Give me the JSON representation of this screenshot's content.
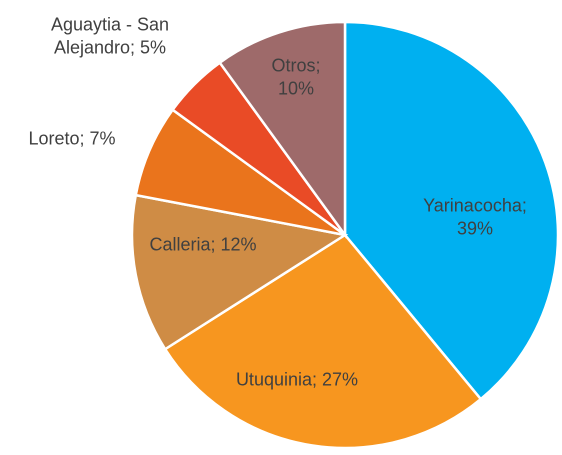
{
  "chart_data": {
    "type": "pie",
    "categories": [
      "Yarinacocha",
      "Utuquinia",
      "Calleria",
      "Loreto",
      "Aguaytia - San Alejandro",
      "Otros"
    ],
    "values": [
      39,
      27,
      12,
      7,
      5,
      10
    ],
    "value_labels": [
      "39%",
      "27%",
      "12%",
      "7%",
      "5%",
      "10%"
    ],
    "label_separator": ";",
    "colors": [
      "#00b0f0",
      "#f7961f",
      "#cf8c45",
      "#ea741c",
      "#e94b26",
      "#9e6a6a"
    ]
  }
}
